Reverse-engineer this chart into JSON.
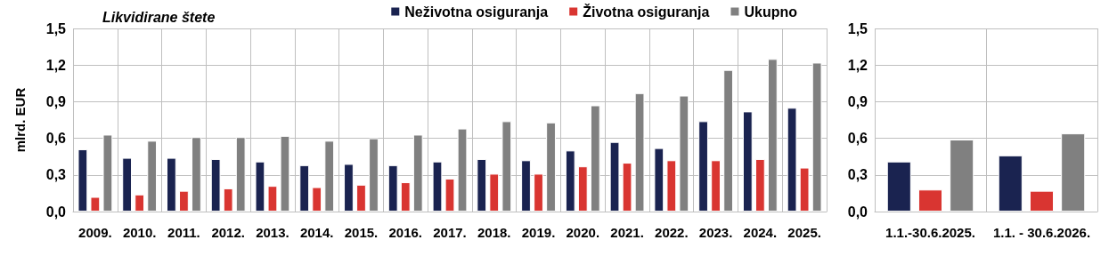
{
  "chart_data": [
    {
      "type": "bar",
      "title": "Likvidirane štete",
      "ylabel": "mlrd. EUR",
      "categories": [
        "2009.",
        "2010.",
        "2011.",
        "2012.",
        "2013.",
        "2014.",
        "2015.",
        "2016.",
        "2017.",
        "2018.",
        "2019.",
        "2020.",
        "2021.",
        "2022.",
        "2023.",
        "2024.",
        "2025."
      ],
      "series": [
        {
          "name": "Neživotna osiguranja",
          "color": "#1a2350",
          "values": [
            0.51,
            0.44,
            0.44,
            0.43,
            0.41,
            0.38,
            0.39,
            0.38,
            0.41,
            0.43,
            0.42,
            0.5,
            0.57,
            0.52,
            0.74,
            0.82,
            0.85
          ]
        },
        {
          "name": "Životna osiguranja",
          "color": "#d93531",
          "values": [
            0.12,
            0.14,
            0.17,
            0.19,
            0.21,
            0.2,
            0.22,
            0.24,
            0.27,
            0.31,
            0.31,
            0.37,
            0.4,
            0.42,
            0.42,
            0.43,
            0.36
          ]
        },
        {
          "name": "Ukupno",
          "color": "#808080",
          "values": [
            0.63,
            0.58,
            0.61,
            0.61,
            0.62,
            0.58,
            0.6,
            0.63,
            0.68,
            0.74,
            0.73,
            0.87,
            0.97,
            0.95,
            1.16,
            1.25,
            1.22
          ]
        }
      ],
      "ylim": [
        0,
        1.5
      ],
      "yticks": [
        {
          "value": 0,
          "label": "0,0"
        },
        {
          "value": 0.3,
          "label": "0,3"
        },
        {
          "value": 0.6,
          "label": "0,6"
        },
        {
          "value": 0.9,
          "label": "0,9"
        },
        {
          "value": 1.2,
          "label": "1,2"
        },
        {
          "value": 1.5,
          "label": "1,5"
        }
      ],
      "grid": true,
      "legend": "top right"
    },
    {
      "type": "bar",
      "categories": [
        "1.1.-30.6.2025.",
        "1.1. - 30.6.2026."
      ],
      "series": [
        {
          "color": "#1a2350",
          "values": [
            0.41,
            0.46
          ]
        },
        {
          "color": "#d93531",
          "values": [
            0.18,
            0.17
          ]
        },
        {
          "color": "#808080",
          "values": [
            0.59,
            0.64
          ]
        }
      ],
      "ylim": [
        0,
        1.5
      ],
      "yticks": [
        {
          "value": 0,
          "label": "0,0"
        },
        {
          "value": 0.3,
          "label": "0,3"
        },
        {
          "value": 0.6,
          "label": "0,6"
        },
        {
          "value": 0.9,
          "label": "0,9"
        },
        {
          "value": 1.2,
          "label": "1,2"
        },
        {
          "value": 1.5,
          "label": "1,5"
        }
      ],
      "grid": true
    }
  ]
}
